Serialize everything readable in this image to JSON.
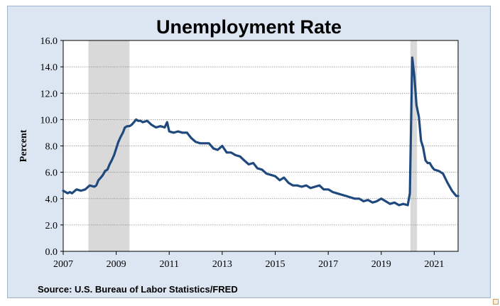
{
  "chart_data": {
    "type": "line",
    "title": "Unemployment Rate",
    "ylabel": "Percent",
    "xlabel": "",
    "source": "Source: U.S. Bureau of Labor Statistics/FRED",
    "ylim": [
      0,
      16
    ],
    "xlim": [
      2007.0,
      2021.9
    ],
    "y_ticks": [
      "0.0",
      "2.0",
      "4.0",
      "6.0",
      "8.0",
      "10.0",
      "12.0",
      "14.0",
      "16.0"
    ],
    "x_ticks": [
      "2007",
      "2009",
      "2011",
      "2013",
      "2015",
      "2017",
      "2019",
      "2021"
    ],
    "grid": true,
    "recessions": [
      [
        2007.95,
        2009.5
      ],
      [
        2020.1,
        2020.35
      ]
    ],
    "line_color": "#1f497d",
    "recession_color": "#d9d9d9",
    "series": [
      {
        "x": [
          2007.0,
          2007.17,
          2007.25,
          2007.33,
          2007.5,
          2007.67,
          2007.83,
          2008.0,
          2008.17,
          2008.25,
          2008.33,
          2008.42,
          2008.5,
          2008.58,
          2008.67,
          2008.75,
          2008.83,
          2008.92,
          2009.0,
          2009.08,
          2009.17,
          2009.25,
          2009.33,
          2009.42,
          2009.5,
          2009.58,
          2009.67,
          2009.75,
          2009.83,
          2009.92,
          2010.0,
          2010.17,
          2010.33,
          2010.5,
          2010.67,
          2010.83,
          2010.92,
          2011.0,
          2011.17,
          2011.33,
          2011.5,
          2011.67,
          2011.83,
          2012.0,
          2012.17,
          2012.33,
          2012.5,
          2012.67,
          2012.83,
          2013.0,
          2013.17,
          2013.33,
          2013.5,
          2013.67,
          2013.83,
          2014.0,
          2014.17,
          2014.33,
          2014.5,
          2014.67,
          2014.83,
          2015.0,
          2015.17,
          2015.33,
          2015.5,
          2015.67,
          2015.83,
          2016.0,
          2016.17,
          2016.33,
          2016.5,
          2016.67,
          2016.83,
          2017.0,
          2017.17,
          2017.33,
          2017.5,
          2017.67,
          2017.83,
          2018.0,
          2018.17,
          2018.33,
          2018.5,
          2018.67,
          2018.83,
          2019.0,
          2019.17,
          2019.33,
          2019.5,
          2019.67,
          2019.83,
          2020.0,
          2020.08,
          2020.17,
          2020.25,
          2020.33,
          2020.42,
          2020.5,
          2020.58,
          2020.67,
          2020.75,
          2020.83,
          2020.92,
          2021.0,
          2021.17,
          2021.33,
          2021.5,
          2021.67,
          2021.83,
          2021.9
        ],
        "y": [
          4.6,
          4.4,
          4.5,
          4.4,
          4.7,
          4.6,
          4.7,
          5.0,
          4.9,
          5.0,
          5.4,
          5.6,
          5.8,
          6.1,
          6.2,
          6.6,
          6.9,
          7.3,
          7.8,
          8.3,
          8.7,
          9.0,
          9.4,
          9.5,
          9.5,
          9.6,
          9.8,
          10.0,
          9.9,
          9.9,
          9.8,
          9.9,
          9.6,
          9.4,
          9.5,
          9.4,
          9.8,
          9.1,
          9.0,
          9.1,
          9.0,
          9.0,
          8.6,
          8.3,
          8.2,
          8.2,
          8.2,
          7.8,
          7.7,
          8.0,
          7.5,
          7.5,
          7.3,
          7.2,
          6.9,
          6.6,
          6.7,
          6.3,
          6.2,
          5.9,
          5.8,
          5.7,
          5.4,
          5.6,
          5.2,
          5.0,
          5.0,
          4.9,
          5.0,
          4.8,
          4.9,
          5.0,
          4.7,
          4.7,
          4.5,
          4.4,
          4.3,
          4.2,
          4.1,
          4.0,
          4.0,
          3.8,
          3.9,
          3.7,
          3.8,
          4.0,
          3.8,
          3.6,
          3.7,
          3.5,
          3.6,
          3.5,
          4.4,
          14.7,
          13.3,
          11.1,
          10.2,
          8.4,
          7.9,
          6.9,
          6.7,
          6.7,
          6.4,
          6.2,
          6.1,
          5.9,
          5.2,
          4.6,
          4.2,
          4.2
        ]
      }
    ]
  }
}
